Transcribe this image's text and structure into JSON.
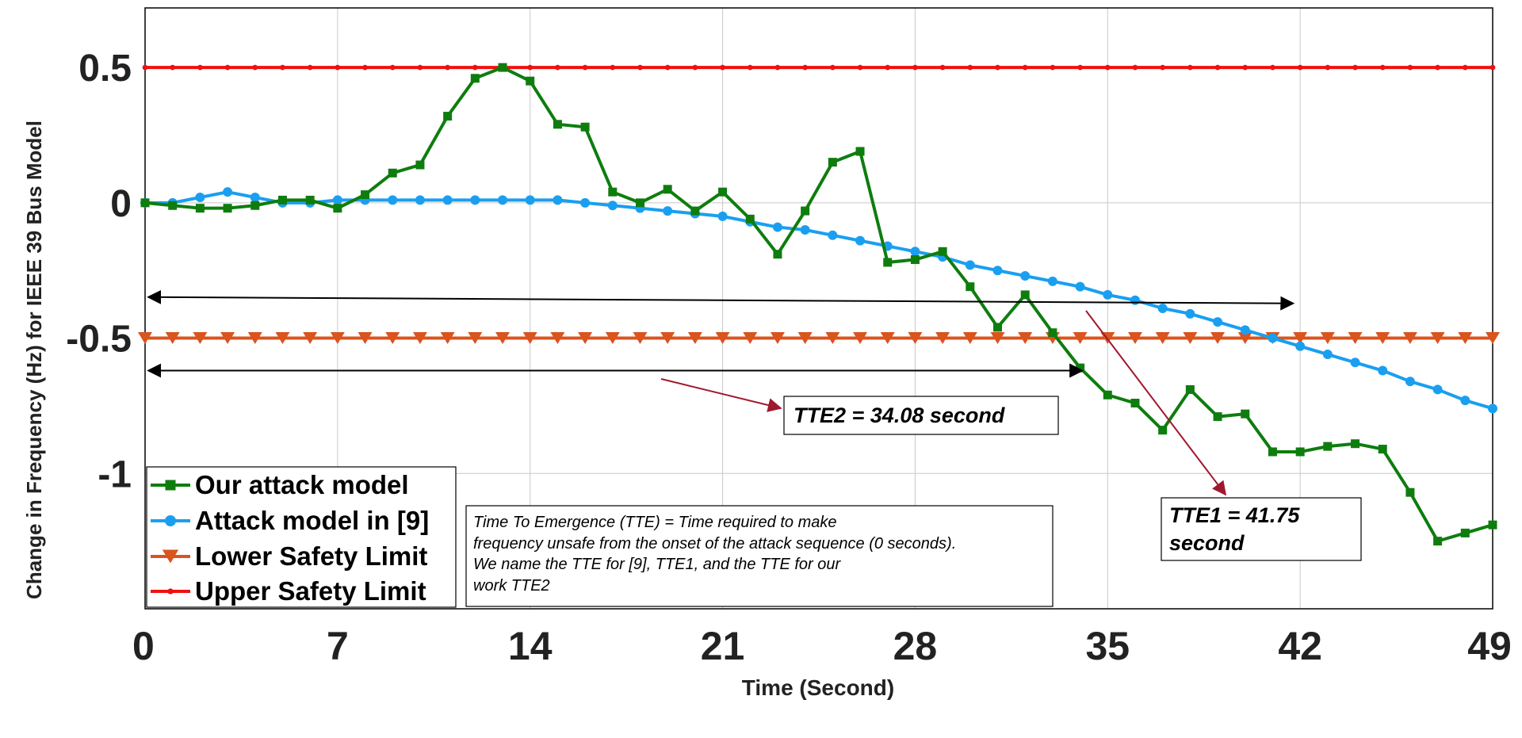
{
  "chart_data": {
    "type": "line",
    "xlabel": "Time (Second)",
    "ylabel": "Change in Frequency (Hz) for IEEE 39 Bus Model",
    "xlim": [
      0,
      49
    ],
    "ylim": [
      -1.5,
      0.72
    ],
    "xticks": [
      0,
      7,
      14,
      21,
      28,
      35,
      42,
      49
    ],
    "yticks": [
      0.5,
      0,
      -0.5,
      -1
    ],
    "ytick_labels": [
      "0.5",
      "0",
      "-0.5",
      "-1"
    ],
    "grid": true,
    "legend_position": "bottom-left",
    "series": [
      {
        "name": "Our attack model",
        "color": "#0e7d0e",
        "marker": "square",
        "x": [
          0,
          1,
          2,
          3,
          4,
          5,
          6,
          7,
          8,
          9,
          10,
          11,
          12,
          13,
          14,
          15,
          16,
          17,
          18,
          19,
          20,
          21,
          22,
          23,
          24,
          25,
          26,
          27,
          28,
          29,
          30,
          31,
          32,
          33,
          34,
          35,
          36,
          37,
          38,
          39,
          40,
          41,
          42,
          43,
          44,
          45,
          46,
          47,
          48,
          49
        ],
        "y": [
          0,
          -0.01,
          -0.02,
          -0.02,
          -0.01,
          0.01,
          0.01,
          -0.02,
          0.03,
          0.11,
          0.14,
          0.32,
          0.46,
          0.5,
          0.45,
          0.29,
          0.28,
          0.04,
          0,
          0.05,
          -0.03,
          0.04,
          -0.06,
          -0.19,
          -0.03,
          0.15,
          0.19,
          -0.22,
          -0.21,
          -0.18,
          -0.31,
          -0.46,
          -0.34,
          -0.48,
          -0.61,
          -0.71,
          -0.74,
          -0.84,
          -0.69,
          -0.79,
          -0.78,
          -0.92,
          -0.92,
          -0.9,
          -0.89,
          -0.91,
          -1.07,
          -1.25,
          -1.22,
          -1.19
        ]
      },
      {
        "name": "Attack model in [9]",
        "color": "#1a9ff0",
        "marker": "circle",
        "x": [
          0,
          1,
          2,
          3,
          4,
          5,
          6,
          7,
          8,
          9,
          10,
          11,
          12,
          13,
          14,
          15,
          16,
          17,
          18,
          19,
          20,
          21,
          22,
          23,
          24,
          25,
          26,
          27,
          28,
          29,
          30,
          31,
          32,
          33,
          34,
          35,
          36,
          37,
          38,
          39,
          40,
          41,
          42,
          43,
          44,
          45,
          46,
          47,
          48,
          49
        ],
        "y": [
          0,
          0,
          0.02,
          0.04,
          0.02,
          0,
          0,
          0.01,
          0.01,
          0.01,
          0.01,
          0.01,
          0.01,
          0.01,
          0.01,
          0.01,
          0,
          -0.01,
          -0.02,
          -0.03,
          -0.04,
          -0.05,
          -0.07,
          -0.09,
          -0.1,
          -0.12,
          -0.14,
          -0.16,
          -0.18,
          -0.2,
          -0.23,
          -0.25,
          -0.27,
          -0.29,
          -0.31,
          -0.34,
          -0.36,
          -0.39,
          -0.41,
          -0.44,
          -0.47,
          -0.5,
          -0.53,
          -0.56,
          -0.59,
          -0.62,
          -0.66,
          -0.69,
          -0.73,
          -0.76
        ]
      },
      {
        "name": "Lower Safety Limit",
        "color": "#d9541e",
        "marker": "triangle-down",
        "constant": -0.5,
        "x_step": 1
      },
      {
        "name": "Upper Safety Limit",
        "color": "#ee1111",
        "marker": "dot",
        "constant": 0.5,
        "x_step": 1
      }
    ],
    "annotations": {
      "arrow_tte1": {
        "from_x": 0,
        "to_x": 41.75,
        "y": -0.36
      },
      "arrow_tte2": {
        "from_x": 0,
        "to_x": 34.08,
        "y": -0.62
      },
      "tte2_label": "TTE2 = 34.08 second",
      "tte1_label_lines": [
        "TTE1 = 41.75",
        "second"
      ],
      "note_lines": [
        "Time To Emergence (TTE) = Time required to make",
        "frequency unsafe from the onset of the attack sequence (0 seconds).",
        "We name the TTE for  [9], TTE1, and the TTE for our",
        "work TTE2"
      ],
      "pointer_color": "#a0182e"
    }
  }
}
